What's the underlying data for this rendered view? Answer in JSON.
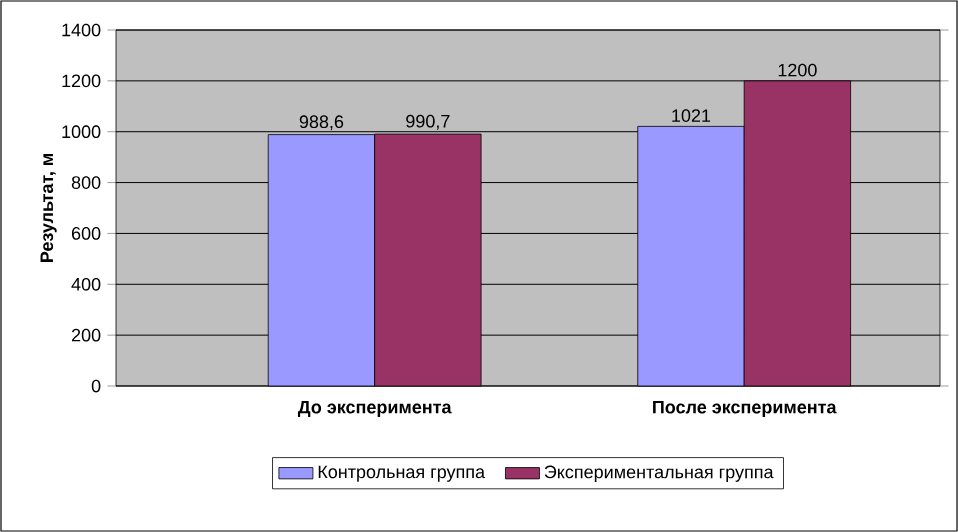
{
  "chart_data": {
    "type": "bar",
    "ylabel": "Результат, м",
    "categories": [
      "До эксперимента",
      "После эксперимента"
    ],
    "series": [
      {
        "name": "Контрольная группа",
        "color": "#9999ff",
        "values": [
          988.6,
          1021
        ],
        "value_labels": [
          "988,6",
          "1021"
        ]
      },
      {
        "name": "Экспериментальная группа",
        "color": "#993366",
        "values": [
          990.7,
          1200
        ],
        "value_labels": [
          "990,7",
          "1200"
        ]
      }
    ],
    "ylim": [
      0,
      1400
    ],
    "yticks": [
      0,
      200,
      400,
      600,
      800,
      1000,
      1200,
      1400
    ],
    "grid": "y",
    "legend": "bottom"
  }
}
